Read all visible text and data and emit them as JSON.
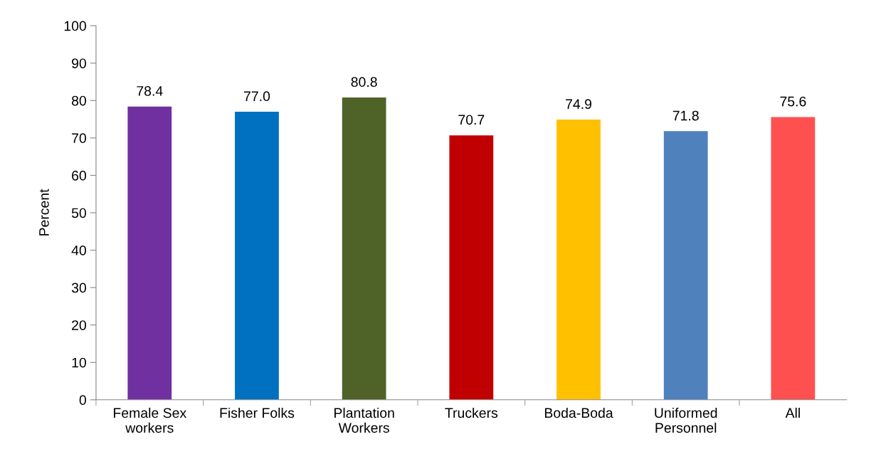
{
  "chart_data": {
    "type": "bar",
    "ylabel": "Percent",
    "categories": [
      "Female Sex\nworkers",
      "Fisher Folks",
      "Plantation\nWorkers",
      "Truckers",
      "Boda-Boda",
      "Uniformed\nPersonnel",
      "All"
    ],
    "values": [
      78.4,
      77.0,
      80.8,
      70.7,
      74.9,
      71.8,
      75.6
    ],
    "value_labels": [
      "78.4",
      "77.0",
      "80.8",
      "70.7",
      "74.9",
      "71.8",
      "75.6"
    ],
    "colors": [
      "#7030a0",
      "#0070c0",
      "#4f6228",
      "#c00000",
      "#ffc000",
      "#4f81bd",
      "#ff5050"
    ],
    "ylim": [
      0,
      100
    ],
    "yticks": [
      0,
      10,
      20,
      30,
      40,
      50,
      60,
      70,
      80,
      90,
      100
    ],
    "grid": false,
    "legend": false
  }
}
